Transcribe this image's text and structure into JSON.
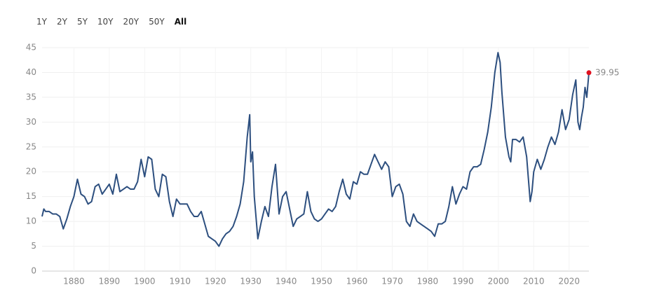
{
  "range_buttons": [
    "1Y",
    "2Y",
    "5Y",
    "10Y",
    "20Y",
    "50Y",
    "All"
  ],
  "active_range": "All",
  "chart_data": {
    "type": "line",
    "color": "#2d4f7f",
    "end_marker_color": "#e0101e",
    "grid": true,
    "xlim": [
      1871,
      2025.6
    ],
    "ylim": [
      0,
      45
    ],
    "xticks": [
      1880,
      1890,
      1900,
      1910,
      1920,
      1930,
      1940,
      1950,
      1960,
      1970,
      1980,
      1990,
      2000,
      2010,
      2020
    ],
    "yticks": [
      0,
      5,
      10,
      15,
      20,
      25,
      30,
      35,
      40,
      45
    ],
    "x": [
      1871,
      1871.5,
      1872,
      1873,
      1874,
      1875,
      1876,
      1877,
      1878,
      1879,
      1880,
      1881,
      1882,
      1883,
      1884,
      1885,
      1886,
      1887,
      1888,
      1889,
      1890,
      1891,
      1892,
      1893,
      1894,
      1895,
      1896,
      1897,
      1898,
      1899,
      1900,
      1901,
      1902,
      1903,
      1904,
      1905,
      1906,
      1907,
      1908,
      1909,
      1910,
      1911,
      1912,
      1913,
      1914,
      1915,
      1916,
      1917,
      1918,
      1919,
      1920,
      1921,
      1922,
      1923,
      1924,
      1925,
      1926,
      1927,
      1928,
      1929,
      1929.7,
      1930,
      1930.5,
      1931,
      1932,
      1933,
      1934,
      1935,
      1936,
      1937,
      1938,
      1939,
      1940,
      1941,
      1942,
      1943,
      1944,
      1945,
      1946,
      1947,
      1948,
      1949,
      1950,
      1951,
      1952,
      1953,
      1954,
      1955,
      1956,
      1957,
      1958,
      1959,
      1960,
      1961,
      1962,
      1963,
      1964,
      1965,
      1966,
      1967,
      1968,
      1969,
      1970,
      1971,
      1972,
      1973,
      1974,
      1975,
      1976,
      1977,
      1978,
      1979,
      1980,
      1981,
      1982,
      1983,
      1984,
      1985,
      1986,
      1987,
      1988,
      1989,
      1990,
      1991,
      1992,
      1993,
      1994,
      1995,
      1996,
      1997,
      1998,
      1999,
      1999.9,
      2000.5,
      2001,
      2002,
      2003,
      2003.5,
      2004,
      2005,
      2006,
      2007,
      2008,
      2009,
      2009.5,
      2010,
      2011,
      2012,
      2013,
      2014,
      2015,
      2016,
      2017,
      2018,
      2019,
      2020,
      2021,
      2021.9,
      2022.5,
      2023,
      2023.5,
      2024,
      2024.5,
      2025,
      2025.6
    ],
    "values": [
      11,
      12.5,
      12,
      12,
      11.5,
      11.5,
      11,
      8.5,
      10.5,
      13,
      15,
      18.5,
      15.5,
      15,
      13.5,
      14,
      17,
      17.5,
      15.5,
      16.5,
      17.5,
      15.5,
      19.5,
      16,
      16.5,
      17,
      16.5,
      16.5,
      18,
      22.5,
      19,
      23,
      22.5,
      16.5,
      15,
      19.5,
      19,
      14,
      11,
      14.5,
      13.5,
      13.5,
      13.5,
      12,
      11,
      11,
      12,
      9.5,
      7,
      6.5,
      6,
      5,
      6.5,
      7.5,
      8,
      9,
      11,
      13.5,
      18,
      27,
      31.5,
      22,
      24,
      15,
      6.5,
      10,
      13,
      11,
      17,
      21.5,
      11.5,
      15,
      16,
      12.5,
      9,
      10.5,
      11,
      11.5,
      16,
      12,
      10.5,
      10,
      10.5,
      11.5,
      12.5,
      12,
      13,
      16,
      18.5,
      15.5,
      14.5,
      18,
      17.5,
      20,
      19.5,
      19.5,
      21.5,
      23.5,
      22,
      20.5,
      22,
      21,
      15,
      17,
      17.5,
      15.5,
      10,
      9,
      11.5,
      10,
      9.5,
      9,
      8.5,
      8,
      7,
      9.5,
      9.5,
      10,
      13,
      17,
      13.5,
      15.5,
      17,
      16.5,
      20,
      21,
      21,
      21.5,
      24.5,
      28,
      33,
      40,
      44,
      42,
      36,
      27,
      23,
      22,
      26.5,
      26.5,
      26,
      27,
      23,
      14,
      16,
      20,
      22.5,
      20.5,
      22.5,
      25,
      27,
      25.5,
      28,
      32.5,
      28.5,
      30.5,
      35.5,
      38.5,
      30,
      28.5,
      31,
      33,
      37,
      35,
      39.95
    ]
  }
}
